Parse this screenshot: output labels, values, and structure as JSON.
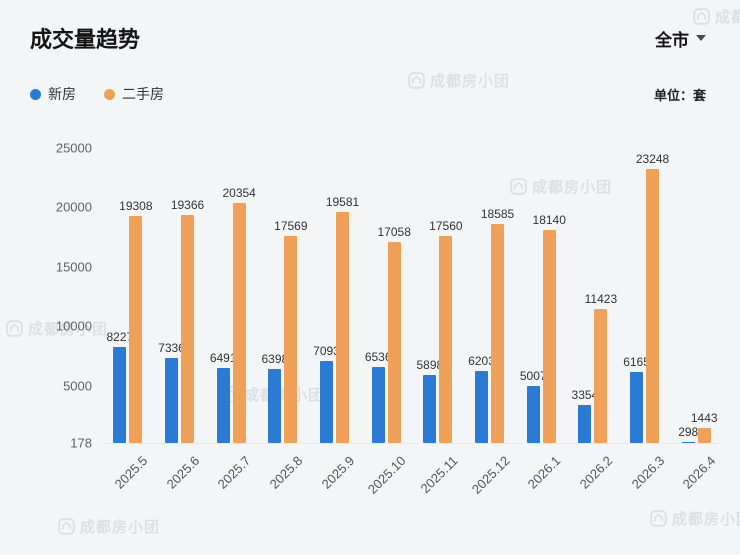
{
  "header": {
    "title": "成交量趋势",
    "region": "全市"
  },
  "legend": [
    {
      "label": "新房",
      "color": "#2b7bd5"
    },
    {
      "label": "二手房",
      "color": "#f0a159"
    }
  ],
  "unit_label": "单位：套",
  "watermark_text": "成都房小团",
  "chart_data": {
    "type": "bar",
    "title": "成交量趋势",
    "categories": [
      "2025.5",
      "2025.6",
      "2025.7",
      "2025.8",
      "2025.9",
      "2025.10",
      "2025.11",
      "2025.12",
      "2026.1",
      "2026.2",
      "2026.3",
      "2026.4"
    ],
    "series": [
      {
        "name": "新房",
        "color": "#2b7bd5",
        "values": [
          8227,
          7336,
          6491,
          6398,
          7093,
          6536,
          5898,
          6203,
          5007,
          3354,
          6165,
          298
        ]
      },
      {
        "name": "二手房",
        "color": "#f0a159",
        "values": [
          19308,
          19366,
          20354,
          17569,
          19581,
          17058,
          17560,
          18585,
          18140,
          11423,
          23248,
          1443
        ]
      }
    ],
    "yticks": [
      178,
      5000,
      10000,
      15000,
      20000,
      25000
    ],
    "ylim": [
      178,
      25000
    ],
    "ylabel": "套",
    "grid": false,
    "legend_position": "top-left"
  }
}
